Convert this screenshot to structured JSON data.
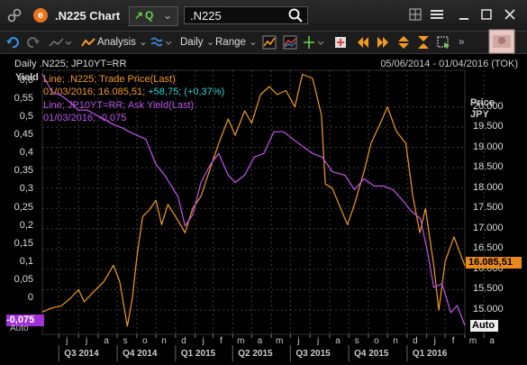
{
  "header": {
    "app_title": ".N225 Chart",
    "quote_label": "Q",
    "ric_value": ".N225"
  },
  "toolbar": {
    "analysis_label": "Analysis",
    "interval_label": "Daily",
    "range_label": "Range"
  },
  "chart_data": {
    "type": "line",
    "title": "Daily .N225; JP10YT=RR",
    "date_range": "05/06/2014 - 01/04/2016 (TOK)",
    "left_axis": {
      "label": "Yield",
      "ylim": [
        -0.1,
        0.63
      ],
      "ticks": [
        "0,6",
        "0,55",
        "0,5",
        "0,45",
        "0,4",
        "0,35",
        "0,3",
        "0,25",
        "0,2",
        "0,15",
        "0,1",
        "0,05",
        "0"
      ]
    },
    "right_axis": {
      "label_line1": "Price",
      "label_line2": "JPY",
      "ylim": [
        14400,
        20900
      ],
      "ticks": [
        "20.000",
        "19.500",
        "19.000",
        "18.500",
        "18.000",
        "17.500",
        "17.000",
        "16.500",
        "16.000",
        "15.500",
        "15.000"
      ]
    },
    "x_months": [
      "j",
      "j",
      "a",
      "s",
      "o",
      "n",
      "d",
      "j",
      "f",
      "m",
      "a",
      "m",
      "j",
      "j",
      "a",
      "s",
      "o",
      "n",
      "d",
      "j",
      "f",
      "m",
      "a"
    ],
    "x_quarters": [
      "Q3 2014",
      "Q4 2014",
      "Q1 2015",
      "Q2 2015",
      "Q3 2015",
      "Q4 2015",
      "Q1 2016"
    ],
    "x_range": [
      "2014-06-05",
      "2016-04-01"
    ],
    "series": [
      {
        "name": "Line; .N225; Trade Price(Last)",
        "axis": "right",
        "color": "#f39a1e",
        "last_value": "16.085,51",
        "x": [
          "2014-06-05",
          "2014-06-20",
          "2014-07-05",
          "2014-07-20",
          "2014-08-01",
          "2014-08-10",
          "2014-08-25",
          "2014-09-10",
          "2014-09-25",
          "2014-10-05",
          "2014-10-17",
          "2014-10-25",
          "2014-11-01",
          "2014-11-10",
          "2014-11-20",
          "2014-12-01",
          "2014-12-10",
          "2014-12-20",
          "2015-01-05",
          "2015-01-16",
          "2015-01-28",
          "2015-02-10",
          "2015-02-25",
          "2015-03-10",
          "2015-03-25",
          "2015-04-05",
          "2015-04-20",
          "2015-05-01",
          "2015-05-15",
          "2015-05-29",
          "2015-06-10",
          "2015-06-24",
          "2015-07-08",
          "2015-07-20",
          "2015-08-05",
          "2015-08-19",
          "2015-08-25",
          "2015-09-05",
          "2015-09-29",
          "2015-10-10",
          "2015-10-25",
          "2015-11-05",
          "2015-11-20",
          "2015-12-01",
          "2015-12-15",
          "2015-12-30",
          "2016-01-10",
          "2016-01-21",
          "2016-01-30",
          "2016-02-12",
          "2016-02-20",
          "2016-03-01",
          "2016-03-15",
          "2016-04-01"
        ],
        "y": [
          14950,
          15050,
          15100,
          15300,
          15500,
          15200,
          15450,
          15700,
          16100,
          15700,
          14600,
          15300,
          16300,
          17300,
          17450,
          17700,
          17100,
          17600,
          17200,
          16900,
          17500,
          17800,
          18500,
          19100,
          19700,
          19300,
          19900,
          19600,
          20300,
          20500,
          20300,
          20400,
          20000,
          20800,
          20700,
          19800,
          18100,
          18000,
          17100,
          17600,
          18400,
          19100,
          19600,
          20000,
          19400,
          19100,
          17800,
          16900,
          17500,
          16100,
          15000,
          16200,
          16800,
          16086
        ]
      },
      {
        "name": "Line; JP10YT=RR; Ask Yield(Last)",
        "axis": "left",
        "color": "#c453f0",
        "last_value": "-0,075",
        "x": [
          "2014-06-05",
          "2014-06-20",
          "2014-07-05",
          "2014-07-20",
          "2014-08-01",
          "2014-08-15",
          "2014-09-05",
          "2014-09-25",
          "2014-10-10",
          "2014-10-20",
          "2014-11-01",
          "2014-11-15",
          "2014-12-01",
          "2014-12-15",
          "2015-01-05",
          "2015-01-16",
          "2015-01-28",
          "2015-02-10",
          "2015-02-25",
          "2015-03-10",
          "2015-03-25",
          "2015-04-05",
          "2015-04-20",
          "2015-05-05",
          "2015-05-20",
          "2015-06-05",
          "2015-06-20",
          "2015-07-05",
          "2015-07-20",
          "2015-08-05",
          "2015-08-20",
          "2015-09-05",
          "2015-09-25",
          "2015-10-10",
          "2015-10-25",
          "2015-11-10",
          "2015-11-25",
          "2015-12-10",
          "2015-12-25",
          "2016-01-08",
          "2016-01-22",
          "2016-02-03",
          "2016-02-12",
          "2016-02-25",
          "2016-03-10",
          "2016-03-20",
          "2016-04-01"
        ],
        "y": [
          0.62,
          0.57,
          0.56,
          0.54,
          0.52,
          0.52,
          0.5,
          0.48,
          0.47,
          0.46,
          0.45,
          0.44,
          0.37,
          0.34,
          0.28,
          0.2,
          0.23,
          0.32,
          0.37,
          0.4,
          0.34,
          0.32,
          0.34,
          0.39,
          0.4,
          0.46,
          0.46,
          0.44,
          0.42,
          0.4,
          0.39,
          0.35,
          0.34,
          0.3,
          0.33,
          0.31,
          0.31,
          0.3,
          0.27,
          0.24,
          0.22,
          0.12,
          0.03,
          0.04,
          -0.04,
          -0.02,
          -0.075
        ]
      }
    ]
  },
  "legend": {
    "line1": "Line; .N225; Trade Price(Last)",
    "line2_a": "01/03/2016; 16.085,51;",
    "line2_b": "+58,75; (+0,37%)",
    "line3": "Line; JP10YT=RR; Ask Yield(Last)",
    "line4": "01/03/2016; -0,075"
  },
  "scale_modes": {
    "left": "Auto",
    "right": "Auto"
  },
  "colors": {
    "price_line": "#f39a1e",
    "yield_line": "#c453f0",
    "change_positive": "#27d6d6",
    "background": "#000000",
    "grid": "#3c3c3c"
  }
}
